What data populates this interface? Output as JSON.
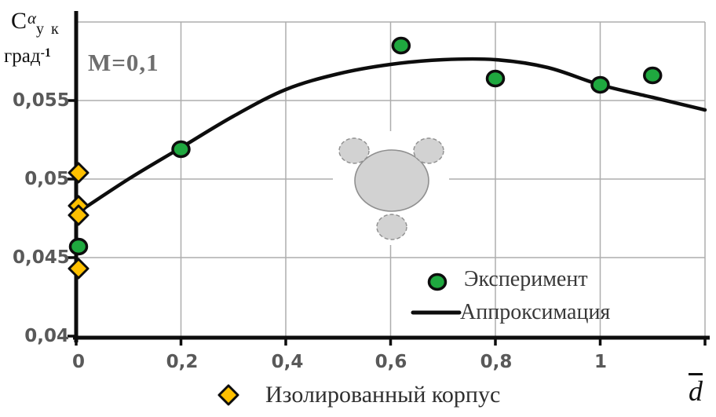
{
  "annotation": "M=0,1",
  "y_axis": {
    "title_base": "C",
    "title_sup": "α",
    "title_sub": "у к",
    "unit_base": "град",
    "unit_exp": "-1",
    "tick_labels": [
      "0,055",
      "0,05",
      "0,045",
      "0,04"
    ]
  },
  "x_axis": {
    "label": "d̄",
    "tick_labels": [
      "0",
      "0,2",
      "0,4",
      "0,6",
      "0,8",
      "1"
    ]
  },
  "legend": {
    "experiment": "Эксперимент",
    "approximation": "Аппроксимация",
    "isolated_body": "Изолированный корпус"
  },
  "colors": {
    "experiment_fill": "#1FA83F",
    "isolated_fill": "#FFC000",
    "marker_stroke": "#0d0d0d",
    "curve": "#0d0d0d",
    "axis": "#0d0d0d",
    "grid": "#ADADAD",
    "figure_fill": "#D2D2D2",
    "figure_stroke": "#8F8F8F",
    "tick_text": "#595959",
    "annotation_text": "#6E6E6E",
    "legend_text": "#383838"
  },
  "chart_data": {
    "type": "scatter",
    "title": "",
    "annotation": "M=0,1",
    "xlabel": "d̄",
    "ylabel": "Cук^α, град⁻¹",
    "xlim": [
      0,
      1.2
    ],
    "ylim": [
      0.04,
      0.06
    ],
    "grid": true,
    "x_gridlines": [
      0.2,
      0.4,
      0.6,
      0.8,
      1.0,
      1.2
    ],
    "y_gridlines": [
      0.045,
      0.05,
      0.055,
      0.06
    ],
    "x_ticks": [
      0,
      0.2,
      0.4,
      0.6,
      0.8,
      1.0,
      1.2
    ],
    "y_ticks": [
      0.04,
      0.045,
      0.05,
      0.055
    ],
    "legend_position": "inside-bottom-right",
    "series": [
      {
        "name": "Эксперимент",
        "type": "scatter",
        "marker": "circle",
        "color": "#1FA83F",
        "points": [
          [
            0,
            0.0457
          ],
          [
            0.2,
            0.0519
          ],
          [
            0.62,
            0.0585
          ],
          [
            0.8,
            0.0564
          ],
          [
            1.0,
            0.056
          ],
          [
            1.1,
            0.0566
          ]
        ]
      },
      {
        "name": "Аппроксимация",
        "type": "line",
        "color": "#0d0d0d",
        "points": [
          [
            0,
            0.0478
          ],
          [
            0.1,
            0.05
          ],
          [
            0.2,
            0.052
          ],
          [
            0.3,
            0.054
          ],
          [
            0.4,
            0.0557
          ],
          [
            0.5,
            0.0567
          ],
          [
            0.6,
            0.0573
          ],
          [
            0.7,
            0.0576
          ],
          [
            0.8,
            0.0576
          ],
          [
            0.9,
            0.0571
          ],
          [
            1.0,
            0.056
          ],
          [
            1.1,
            0.0552
          ],
          [
            1.2,
            0.0544
          ]
        ]
      },
      {
        "name": "Изолированный корпус",
        "type": "scatter",
        "marker": "diamond",
        "color": "#FFC000",
        "points": [
          [
            0,
            0.0504
          ],
          [
            0,
            0.0483
          ],
          [
            0,
            0.0477
          ],
          [
            0,
            0.0443
          ]
        ]
      }
    ]
  }
}
